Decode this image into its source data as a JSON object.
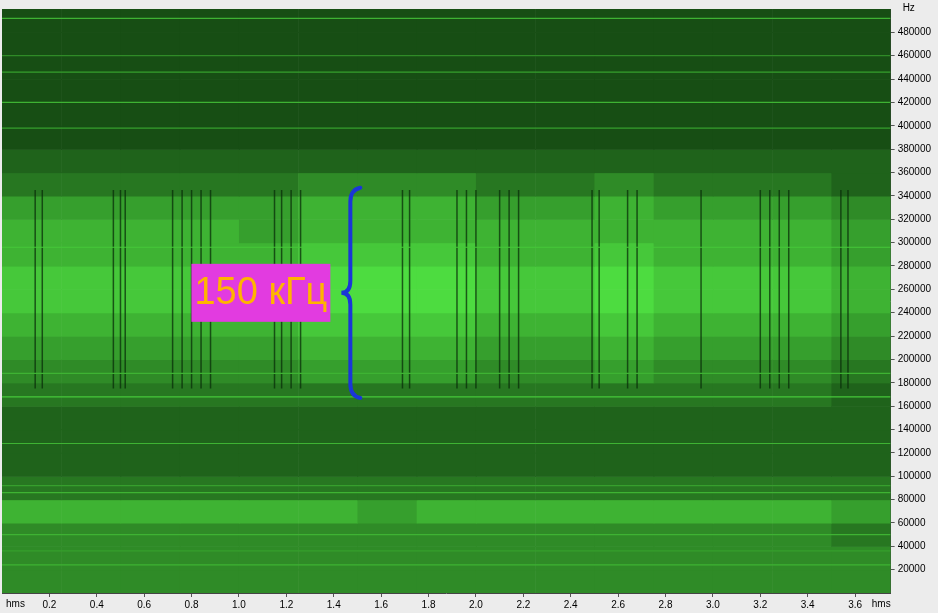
{
  "chart_data": {
    "type": "spectrogram",
    "xlabel": "hms",
    "ylabel": "Hz",
    "xlim": [
      0,
      3.75
    ],
    "xticks": [
      0.2,
      0.4,
      0.6,
      0.8,
      1.0,
      1.2,
      1.4,
      1.6,
      1.8,
      2.0,
      2.2,
      2.4,
      2.6,
      2.8,
      3.0,
      3.2,
      3.4,
      3.6
    ],
    "ylim": [
      0,
      500000
    ],
    "yticks": [
      20000,
      40000,
      60000,
      80000,
      100000,
      120000,
      140000,
      160000,
      180000,
      200000,
      220000,
      240000,
      260000,
      280000,
      300000,
      320000,
      340000,
      360000,
      380000,
      400000,
      420000,
      440000,
      460000,
      480000
    ],
    "grid": false,
    "cells": {
      "x_bins": [
        0,
        0.25,
        0.5,
        0.75,
        1.0,
        1.25,
        1.5,
        1.75,
        2.0,
        2.25,
        2.5,
        2.75,
        3.0,
        3.25,
        3.5,
        3.75
      ],
      "y_bins": [
        0,
        20000,
        40000,
        60000,
        80000,
        100000,
        120000,
        140000,
        160000,
        180000,
        200000,
        220000,
        240000,
        260000,
        280000,
        300000,
        320000,
        340000,
        360000,
        380000,
        400000,
        420000,
        440000,
        460000,
        480000,
        500000
      ],
      "color_range": [
        0,
        10
      ],
      "values": [
        [
          5,
          5,
          5,
          5,
          5,
          5,
          5,
          5,
          5,
          5,
          5,
          5,
          5,
          5,
          5
        ],
        [
          5,
          5,
          5,
          5,
          5,
          5,
          5,
          5,
          5,
          5,
          5,
          5,
          5,
          5,
          5
        ],
        [
          5,
          5,
          5,
          5,
          5,
          5,
          5,
          5,
          5,
          5,
          5,
          5,
          5,
          5,
          4
        ],
        [
          7,
          7,
          7,
          7,
          7,
          7,
          6,
          7,
          7,
          7,
          7,
          7,
          7,
          7,
          6
        ],
        [
          4,
          4,
          4,
          4,
          4,
          4,
          4,
          4,
          4,
          4,
          4,
          4,
          4,
          4,
          4
        ],
        [
          3,
          3,
          3,
          3,
          3,
          3,
          3,
          3,
          3,
          3,
          3,
          3,
          3,
          3,
          3
        ],
        [
          3,
          3,
          3,
          3,
          3,
          3,
          3,
          3,
          3,
          3,
          3,
          3,
          3,
          3,
          3
        ],
        [
          3,
          3,
          3,
          3,
          3,
          3,
          3,
          3,
          3,
          3,
          3,
          3,
          3,
          3,
          3
        ],
        [
          4,
          4,
          4,
          4,
          4,
          4,
          4,
          4,
          4,
          4,
          4,
          4,
          4,
          4,
          3
        ],
        [
          5,
          5,
          5,
          5,
          5,
          6,
          6,
          6,
          5,
          5,
          6,
          5,
          5,
          5,
          4
        ],
        [
          6,
          6,
          6,
          6,
          6,
          7,
          7,
          7,
          6,
          6,
          7,
          6,
          6,
          6,
          5
        ],
        [
          7,
          7,
          7,
          7,
          7,
          8,
          8,
          8,
          7,
          7,
          8,
          7,
          7,
          7,
          6
        ],
        [
          8,
          8,
          8,
          8,
          8,
          9,
          9,
          9,
          8,
          8,
          9,
          8,
          8,
          8,
          7
        ],
        [
          8,
          8,
          8,
          8,
          8,
          9,
          9,
          9,
          8,
          8,
          9,
          8,
          8,
          8,
          7
        ],
        [
          7,
          7,
          7,
          7,
          7,
          8,
          8,
          8,
          7,
          7,
          8,
          7,
          7,
          7,
          6
        ],
        [
          7,
          7,
          7,
          7,
          6,
          7,
          7,
          7,
          7,
          7,
          7,
          7,
          7,
          7,
          6
        ],
        [
          6,
          6,
          6,
          6,
          6,
          7,
          7,
          7,
          6,
          6,
          7,
          6,
          6,
          6,
          5
        ],
        [
          4,
          4,
          4,
          4,
          4,
          5,
          5,
          5,
          4,
          4,
          5,
          4,
          4,
          4,
          3
        ],
        [
          3,
          3,
          3,
          3,
          3,
          3,
          3,
          3,
          3,
          3,
          3,
          3,
          3,
          3,
          3
        ],
        [
          2,
          2,
          2,
          2,
          2,
          2,
          2,
          2,
          2,
          2,
          2,
          2,
          2,
          2,
          2
        ],
        [
          2,
          2,
          2,
          2,
          2,
          2,
          2,
          2,
          2,
          2,
          2,
          2,
          2,
          2,
          2
        ],
        [
          2,
          2,
          2,
          2,
          2,
          2,
          2,
          2,
          2,
          2,
          2,
          2,
          2,
          2,
          2
        ],
        [
          2,
          2,
          2,
          2,
          2,
          2,
          2,
          2,
          2,
          2,
          2,
          2,
          2,
          2,
          2
        ],
        [
          2,
          2,
          2,
          2,
          2,
          2,
          2,
          2,
          2,
          2,
          2,
          2,
          2,
          2,
          2
        ],
        [
          2,
          2,
          2,
          2,
          2,
          2,
          2,
          2,
          2,
          2,
          2,
          2,
          2,
          2,
          2
        ]
      ]
    },
    "lines": [
      {
        "frequency": 24000,
        "level": 7
      },
      {
        "frequency": 36000,
        "level": 6
      },
      {
        "frequency": 50000,
        "level": 7
      },
      {
        "frequency": 86000,
        "level": 7
      },
      {
        "frequency": 92000,
        "level": 6
      },
      {
        "frequency": 128000,
        "level": 7
      },
      {
        "frequency": 168000,
        "level": 8
      },
      {
        "frequency": 188000,
        "level": 7
      },
      {
        "frequency": 296000,
        "level": 8
      },
      {
        "frequency": 398000,
        "level": 6
      },
      {
        "frequency": 420000,
        "level": 7
      },
      {
        "frequency": 446000,
        "level": 6
      },
      {
        "frequency": 460000,
        "level": 5
      },
      {
        "frequency": 492000,
        "level": 7
      }
    ],
    "stripes": {
      "from": 175000,
      "to": 345000,
      "times": [
        0.14,
        0.17,
        0.47,
        0.5,
        0.52,
        0.72,
        0.76,
        0.8,
        0.84,
        0.88,
        1.15,
        1.18,
        1.22,
        1.26,
        1.69,
        1.72,
        1.92,
        1.96,
        2.0,
        2.1,
        2.14,
        2.18,
        2.49,
        2.52,
        2.64,
        2.68,
        2.95,
        3.2,
        3.24,
        3.28,
        3.32,
        3.54,
        3.57
      ]
    },
    "annotations": [
      {
        "text": "150 кГц",
        "x": 1.47,
        "from": 167000,
        "to": 347000
      }
    ]
  }
}
